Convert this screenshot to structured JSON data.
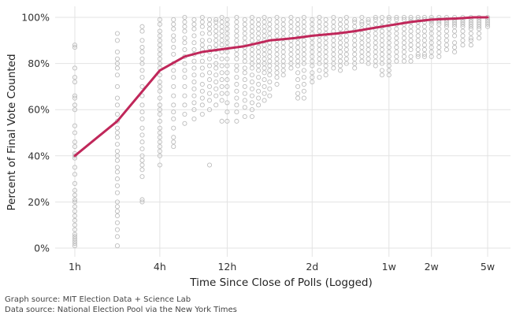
{
  "chart_data": {
    "type": "scatter",
    "title": "",
    "xlabel": "Time Since Close of Polls (Logged)",
    "ylabel": "Percent of Final Vote Counted",
    "x_scale": "log",
    "x_unit": "hours",
    "xlim": [
      0.72,
      1100
    ],
    "ylim": [
      0,
      105
    ],
    "x_ticks": [
      {
        "label": "1h",
        "value": 1
      },
      {
        "label": "4h",
        "value": 4
      },
      {
        "label": "12h",
        "value": 12
      },
      {
        "label": "2d",
        "value": 48
      },
      {
        "label": "1w",
        "value": 168
      },
      {
        "label": "2w",
        "value": 336
      },
      {
        "label": "5w",
        "value": 840
      }
    ],
    "y_ticks": [
      {
        "label": "0%",
        "value": 0
      },
      {
        "label": "20%",
        "value": 20
      },
      {
        "label": "40%",
        "value": 40
      },
      {
        "label": "60%",
        "value": 60
      },
      {
        "label": "80%",
        "value": 80
      },
      {
        "label": "100%",
        "value": 100
      }
    ],
    "grid": true,
    "colors": {
      "points": "#bdbdbd",
      "line": "#c0275a",
      "grid": "#e3e3e3"
    },
    "series": [
      {
        "type": "line",
        "x": [
          1,
          2,
          4,
          6,
          8,
          12,
          16,
          24,
          30,
          36,
          48,
          72,
          96,
          120,
          168,
          240,
          336,
          504,
          672,
          840
        ],
        "values": [
          40,
          55,
          77,
          83,
          85,
          86.5,
          87.5,
          90,
          90.5,
          91,
          92,
          93,
          94,
          95,
          96.5,
          98,
          99,
          99.5,
          100,
          100
        ]
      },
      {
        "type": "scatter",
        "clusters": [
          {
            "x": 1,
            "values": [
              88,
              87,
              78,
              74,
              72,
              66,
              65,
              62,
              60,
              53,
              50,
              46,
              44,
              41,
              40,
              39,
              35,
              32,
              28,
              25,
              23,
              21,
              20,
              18,
              16,
              14,
              12,
              10,
              8,
              6,
              5,
              4,
              3,
              2,
              1
            ]
          },
          {
            "x": 2,
            "values": [
              93,
              90,
              85,
              82,
              80,
              78,
              75,
              70,
              65,
              62,
              58,
              55,
              52,
              50,
              48,
              45,
              42,
              40,
              38,
              35,
              33,
              30,
              27,
              24,
              20,
              18,
              16,
              14,
              11,
              8,
              5,
              1
            ]
          },
          {
            "x": 3,
            "values": [
              96,
              94,
              90,
              87,
              85,
              82,
              80,
              77,
              74,
              70,
              66,
              62,
              59,
              56,
              52,
              49,
              46,
              43,
              40,
              38,
              36,
              34,
              31,
              21,
              20
            ]
          },
          {
            "x": 4,
            "values": [
              99,
              97,
              94,
              92,
              90,
              88,
              86,
              84,
              82,
              80,
              78,
              75,
              72,
              70,
              68,
              65,
              62,
              60,
              58,
              55,
              52,
              50,
              48,
              46,
              44,
              42,
              40,
              36
            ]
          },
          {
            "x": 5,
            "values": [
              99,
              97,
              95,
              92,
              90,
              87,
              84,
              80,
              77,
              74,
              70,
              66,
              62,
              59,
              56,
              52,
              48,
              46,
              44
            ]
          },
          {
            "x": 6,
            "values": [
              100,
              98,
              96,
              94,
              91,
              89,
              86,
              83,
              80,
              77,
              74,
              70,
              66,
              62,
              58,
              54
            ]
          },
          {
            "x": 7,
            "values": [
              99,
              97,
              95,
              92,
              89,
              86,
              84,
              81,
              78,
              75,
              72,
              69,
              66,
              63,
              60,
              56
            ]
          },
          {
            "x": 8,
            "values": [
              100,
              98,
              96,
              93,
              90,
              88,
              86,
              84,
              81,
              78,
              75,
              71,
              68,
              65,
              62,
              58
            ]
          },
          {
            "x": 9,
            "values": [
              99,
              97,
              95,
              93,
              90,
              87,
              85,
              82,
              79,
              76,
              73,
              70,
              67,
              64,
              60,
              36
            ]
          },
          {
            "x": 10,
            "values": [
              99,
              98,
              96,
              94,
              92,
              90,
              88,
              86,
              83,
              80,
              78,
              75,
              72,
              69,
              66,
              62
            ]
          },
          {
            "x": 11,
            "values": [
              100,
              98,
              96,
              94,
              92,
              90,
              88,
              85,
              82,
              79,
              76,
              73,
              70,
              67,
              64,
              55
            ]
          },
          {
            "x": 12,
            "values": [
              99,
              97,
              95,
              93,
              91,
              89,
              87,
              85,
              82,
              79,
              76,
              73,
              70,
              67,
              63,
              59,
              55
            ]
          },
          {
            "x": 14,
            "values": [
              100,
              98,
              96,
              94,
              92,
              90,
              88,
              86,
              84,
              82,
              79,
              77,
              74,
              71,
              68,
              65,
              62,
              59,
              55
            ]
          },
          {
            "x": 16,
            "values": [
              99,
              97,
              95,
              93,
              91,
              89,
              87,
              85,
              83,
              81,
              78,
              76,
              73,
              70,
              67,
              64,
              61,
              57
            ]
          },
          {
            "x": 18,
            "values": [
              100,
              98,
              96,
              94,
              92,
              90,
              88,
              86,
              84,
              82,
              80,
              78,
              75,
              72,
              69,
              66,
              63,
              60,
              57
            ]
          },
          {
            "x": 20,
            "values": [
              99,
              97,
              95,
              93,
              91,
              89,
              87,
              85,
              83,
              81,
              79,
              77,
              74,
              71,
              68,
              65,
              62
            ]
          },
          {
            "x": 22,
            "values": [
              100,
              98,
              96,
              94,
              92,
              90,
              88,
              86,
              84,
              82,
              80,
              78,
              76,
              73,
              70,
              67,
              64
            ]
          },
          {
            "x": 24,
            "values": [
              99,
              97,
              95,
              93,
              91,
              89,
              87,
              85,
              83,
              81,
              79,
              77,
              75,
              72,
              69,
              66
            ]
          },
          {
            "x": 27,
            "values": [
              100,
              98,
              96,
              94,
              92,
              90,
              88,
              86,
              84,
              82,
              80,
              78,
              76,
              74,
              71
            ]
          },
          {
            "x": 30,
            "values": [
              99,
              97,
              95,
              93,
              91,
              89,
              87,
              85,
              83,
              81,
              79,
              77,
              75
            ]
          },
          {
            "x": 34,
            "values": [
              100,
              98,
              96,
              94,
              92,
              90,
              88,
              86,
              84,
              82,
              80,
              78
            ]
          },
          {
            "x": 38,
            "values": [
              99,
              97,
              95,
              93,
              91,
              89,
              87,
              85,
              83,
              81,
              79,
              76,
              73,
              70,
              67,
              65
            ]
          },
          {
            "x": 42,
            "values": [
              100,
              98,
              96,
              94,
              92,
              90,
              88,
              86,
              84,
              82,
              80,
              77,
              74,
              71,
              68,
              65
            ]
          },
          {
            "x": 48,
            "values": [
              99,
              97,
              95,
              93,
              91,
              89,
              87,
              85,
              83,
              81,
              79,
              76,
              74,
              72
            ]
          },
          {
            "x": 54,
            "values": [
              100,
              98,
              96,
              94,
              92,
              90,
              88,
              86,
              84,
              82,
              80,
              77,
              74
            ]
          },
          {
            "x": 60,
            "values": [
              99,
              97,
              95,
              93,
              91,
              89,
              87,
              85,
              83,
              81,
              79,
              77,
              75
            ]
          },
          {
            "x": 68,
            "values": [
              100,
              98,
              96,
              94,
              92,
              90,
              88,
              86,
              84,
              82,
              80,
              78
            ]
          },
          {
            "x": 76,
            "values": [
              99,
              97,
              95,
              93,
              91,
              89,
              87,
              85,
              83,
              81,
              79,
              77
            ]
          },
          {
            "x": 84,
            "values": [
              100,
              98,
              96,
              94,
              92,
              90,
              88,
              86,
              84,
              82,
              80
            ]
          },
          {
            "x": 96,
            "values": [
              99,
              98,
              96,
              94,
              92,
              90,
              88,
              86,
              84,
              82,
              80,
              78
            ]
          },
          {
            "x": 108,
            "values": [
              100,
              98,
              97,
              95,
              93,
              91,
              89,
              87,
              85,
              83,
              81
            ]
          },
          {
            "x": 120,
            "values": [
              99,
              98,
              96,
              94,
              92,
              90,
              88,
              86,
              84,
              82,
              80
            ]
          },
          {
            "x": 135,
            "values": [
              100,
              99,
              97,
              95,
              93,
              91,
              89,
              87,
              85,
              83,
              81,
              79
            ]
          },
          {
            "x": 150,
            "values": [
              100,
              98,
              96,
              94,
              92,
              90,
              88,
              86,
              84,
              82,
              80,
              77,
              75
            ]
          },
          {
            "x": 168,
            "values": [
              100,
              99,
              97,
              95,
              93,
              91,
              89,
              87,
              85,
              83,
              81,
              79,
              77,
              75
            ]
          },
          {
            "x": 190,
            "values": [
              100,
              99,
              97,
              95,
              93,
              91,
              89,
              87,
              85,
              83,
              81
            ]
          },
          {
            "x": 215,
            "values": [
              100,
              99,
              97,
              95,
              93,
              91,
              89,
              87,
              85,
              83,
              81
            ]
          },
          {
            "x": 240,
            "values": [
              100,
              99,
              98,
              96,
              94,
              92,
              90,
              88,
              86,
              83,
              81
            ]
          },
          {
            "x": 270,
            "values": [
              100,
              99,
              98,
              96,
              94,
              92,
              90,
              88,
              86,
              84,
              83
            ]
          },
          {
            "x": 300,
            "values": [
              100,
              99,
              98,
              96,
              94,
              92,
              90,
              88,
              86,
              84,
              83
            ]
          },
          {
            "x": 336,
            "values": [
              100,
              99,
              98,
              97,
              95,
              93,
              91,
              89,
              87,
              85,
              83
            ]
          },
          {
            "x": 380,
            "values": [
              100,
              99,
              98,
              97,
              95,
              93,
              91,
              89,
              87,
              85,
              83
            ]
          },
          {
            "x": 430,
            "values": [
              100,
              99,
              98,
              97,
              96,
              94,
              92,
              90,
              88,
              86
            ]
          },
          {
            "x": 490,
            "values": [
              100,
              99,
              98,
              97,
              96,
              94,
              92,
              89,
              87,
              85
            ]
          },
          {
            "x": 560,
            "values": [
              100,
              99,
              98,
              97,
              96,
              94,
              92,
              90,
              88
            ]
          },
          {
            "x": 640,
            "values": [
              100,
              99,
              98,
              97,
              96,
              95,
              93,
              91,
              90,
              88
            ]
          },
          {
            "x": 730,
            "values": [
              100,
              99,
              98,
              97,
              96,
              95,
              93,
              91
            ]
          },
          {
            "x": 840,
            "values": [
              100,
              99,
              98,
              97,
              96
            ]
          }
        ]
      }
    ]
  },
  "footer": {
    "graph_source": "Graph source: MIT Election Data + Science Lab",
    "data_source": "Data source: National Election Pool via the New York Times"
  }
}
